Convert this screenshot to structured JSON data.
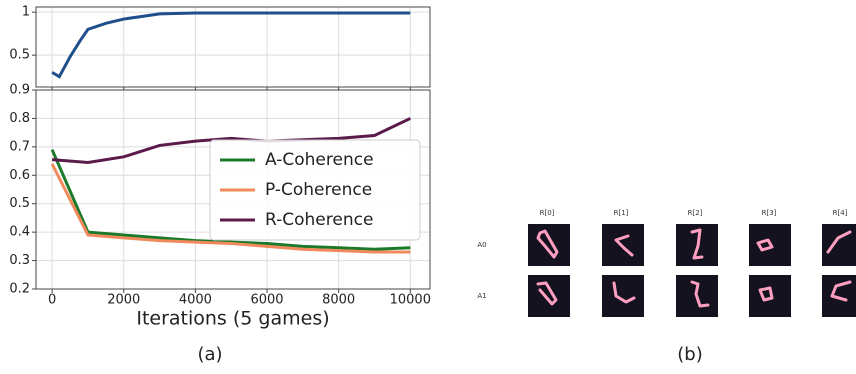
{
  "chart_data": [
    {
      "type": "line",
      "x": [
        0,
        200,
        500,
        800,
        1000,
        1500,
        2000,
        2500,
        3000,
        4000,
        5000,
        6000,
        7000,
        8000,
        9000,
        10000
      ],
      "series": [
        {
          "color": "#1f4e8c",
          "values": [
            0.3,
            0.25,
            0.48,
            0.68,
            0.8,
            0.87,
            0.92,
            0.95,
            0.98,
            0.99,
            0.99,
            0.99,
            0.99,
            0.99,
            0.99,
            0.99
          ]
        }
      ],
      "xlim": [
        -450,
        10550
      ],
      "ylim": [
        0.13,
        1.06
      ],
      "xticks": [
        0,
        2000,
        4000,
        6000,
        8000,
        10000
      ],
      "yticks": [
        0.5,
        1.0
      ],
      "grid": true
    },
    {
      "type": "line",
      "x": [
        0,
        1000,
        2000,
        3000,
        4000,
        5000,
        6000,
        7000,
        8000,
        9000,
        10000
      ],
      "series": [
        {
          "name": "A-Coherence",
          "color": "#1a7a2a",
          "values": [
            0.69,
            0.4,
            0.39,
            0.38,
            0.37,
            0.365,
            0.36,
            0.35,
            0.345,
            0.34,
            0.345
          ]
        },
        {
          "name": "P-Coherence",
          "color": "#f08a5d",
          "values": [
            0.64,
            0.39,
            0.38,
            0.37,
            0.365,
            0.36,
            0.35,
            0.34,
            0.335,
            0.33,
            0.33
          ]
        },
        {
          "name": "R-Coherence",
          "color": "#5b1a4a",
          "values": [
            0.655,
            0.645,
            0.665,
            0.705,
            0.72,
            0.73,
            0.72,
            0.725,
            0.73,
            0.74,
            0.8
          ]
        }
      ],
      "xlabel": "Iterations (5 games)",
      "xlim": [
        -450,
        10550
      ],
      "ylim": [
        0.2,
        0.9
      ],
      "xticks": [
        0,
        2000,
        4000,
        6000,
        8000,
        10000
      ],
      "yticks": [
        0.2,
        0.3,
        0.4,
        0.5,
        0.6,
        0.7,
        0.8,
        0.9
      ],
      "grid": true,
      "legend": "center-right"
    }
  ],
  "image_grid": {
    "columns": [
      "R[0]",
      "R[1]",
      "R[2]",
      "R[3]",
      "R[4]"
    ],
    "rows": [
      "A0",
      "A1"
    ]
  },
  "captions": [
    "(a)",
    "(b)"
  ]
}
